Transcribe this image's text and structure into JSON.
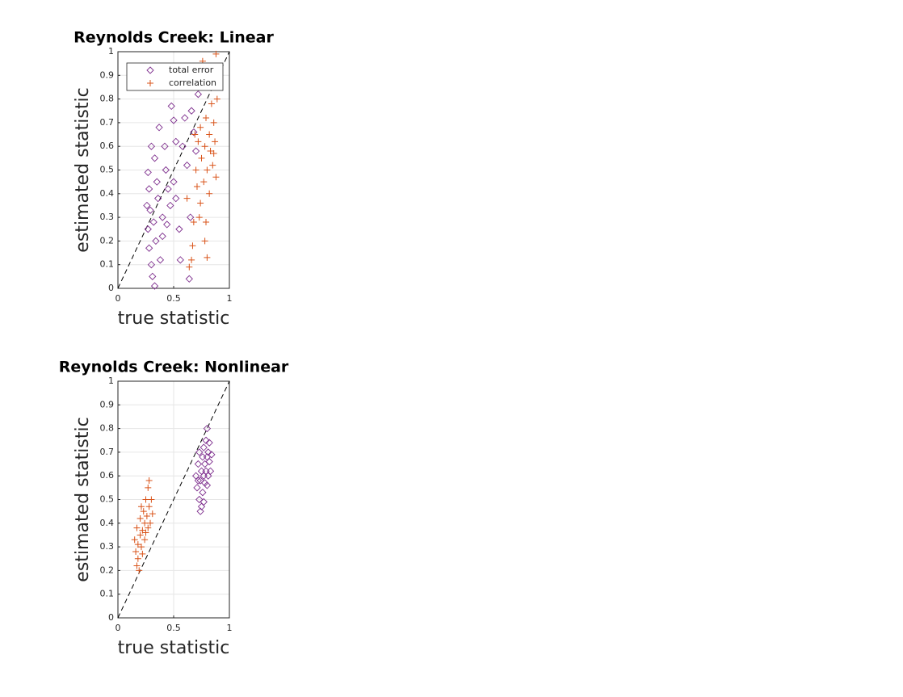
{
  "chart_data": [
    {
      "type": "scatter",
      "title": "Reynolds Creek: Linear",
      "xlabel": "true statistic",
      "ylabel": "estimated statistic",
      "xlim": [
        0,
        1
      ],
      "ylim": [
        0,
        1
      ],
      "xticks": [
        0,
        0.5,
        1
      ],
      "yticks": [
        0,
        0.1,
        0.2,
        0.3,
        0.4,
        0.5,
        0.6,
        0.7,
        0.8,
        0.9,
        1
      ],
      "grid": true,
      "identity_line": true,
      "legend": "northeast",
      "series": [
        {
          "name": "total error",
          "color": "#7e2f8e",
          "marker": "diamond",
          "x": [
            0.27,
            0.28,
            0.29,
            0.27,
            0.28,
            0.3,
            0.31,
            0.33,
            0.3,
            0.33,
            0.35,
            0.36,
            0.32,
            0.34,
            0.38,
            0.4,
            0.42,
            0.43,
            0.45,
            0.47,
            0.48,
            0.5,
            0.52,
            0.5,
            0.52,
            0.55,
            0.56,
            0.58,
            0.6,
            0.62,
            0.64,
            0.65,
            0.66,
            0.68,
            0.7,
            0.72,
            0.44,
            0.37,
            0.26,
            0.4
          ],
          "values": [
            0.49,
            0.42,
            0.33,
            0.25,
            0.17,
            0.1,
            0.05,
            0.01,
            0.6,
            0.55,
            0.45,
            0.38,
            0.28,
            0.2,
            0.12,
            0.3,
            0.6,
            0.5,
            0.42,
            0.35,
            0.77,
            0.71,
            0.62,
            0.45,
            0.38,
            0.25,
            0.12,
            0.6,
            0.72,
            0.52,
            0.04,
            0.3,
            0.75,
            0.66,
            0.58,
            0.82,
            0.27,
            0.68,
            0.35,
            0.22
          ]
        },
        {
          "name": "correlation",
          "color": "#d95319",
          "marker": "plus",
          "x": [
            0.62,
            0.64,
            0.66,
            0.67,
            0.68,
            0.7,
            0.71,
            0.72,
            0.73,
            0.74,
            0.75,
            0.76,
            0.77,
            0.78,
            0.78,
            0.79,
            0.8,
            0.8,
            0.81,
            0.82,
            0.82,
            0.83,
            0.84,
            0.85,
            0.86,
            0.87,
            0.87,
            0.88,
            0.88,
            0.89,
            0.69,
            0.74,
            0.79,
            0.86,
            0.83
          ],
          "values": [
            0.38,
            0.09,
            0.12,
            0.18,
            0.28,
            0.5,
            0.43,
            0.62,
            0.3,
            0.68,
            0.55,
            0.96,
            0.45,
            0.2,
            0.6,
            0.72,
            0.13,
            0.5,
            0.85,
            0.4,
            0.65,
            0.58,
            0.78,
            0.52,
            0.7,
            0.92,
            0.62,
            0.99,
            0.47,
            0.8,
            0.65,
            0.36,
            0.28,
            0.57,
            0.88
          ]
        }
      ]
    },
    {
      "type": "scatter",
      "title": "Reynolds Creek: Nonlinear",
      "xlabel": "true statistic",
      "ylabel": "estimated statistic",
      "xlim": [
        0,
        1
      ],
      "ylim": [
        0,
        1
      ],
      "xticks": [
        0,
        0.5,
        1
      ],
      "yticks": [
        0,
        0.1,
        0.2,
        0.3,
        0.4,
        0.5,
        0.6,
        0.7,
        0.8,
        0.9,
        1
      ],
      "grid": true,
      "identity_line": true,
      "series": [
        {
          "color": "#7e2f8e",
          "marker": "diamond",
          "x": [
            0.7,
            0.71,
            0.72,
            0.73,
            0.73,
            0.74,
            0.75,
            0.75,
            0.76,
            0.76,
            0.77,
            0.77,
            0.78,
            0.78,
            0.79,
            0.79,
            0.8,
            0.8,
            0.81,
            0.81,
            0.82,
            0.82,
            0.83,
            0.84,
            0.74,
            0.77,
            0.72,
            0.8
          ],
          "values": [
            0.6,
            0.55,
            0.65,
            0.5,
            0.7,
            0.58,
            0.47,
            0.62,
            0.68,
            0.53,
            0.72,
            0.6,
            0.65,
            0.57,
            0.75,
            0.62,
            0.68,
            0.8,
            0.6,
            0.7,
            0.66,
            0.74,
            0.62,
            0.69,
            0.45,
            0.49,
            0.58,
            0.56
          ]
        },
        {
          "color": "#d95319",
          "marker": "plus",
          "x": [
            0.15,
            0.16,
            0.17,
            0.18,
            0.18,
            0.19,
            0.2,
            0.2,
            0.21,
            0.22,
            0.22,
            0.23,
            0.24,
            0.24,
            0.25,
            0.25,
            0.26,
            0.27,
            0.27,
            0.28,
            0.28,
            0.29,
            0.3,
            0.31,
            0.17,
            0.21
          ],
          "values": [
            0.33,
            0.28,
            0.38,
            0.25,
            0.31,
            0.2,
            0.35,
            0.42,
            0.3,
            0.37,
            0.27,
            0.45,
            0.33,
            0.4,
            0.5,
            0.36,
            0.43,
            0.55,
            0.38,
            0.47,
            0.58,
            0.4,
            0.5,
            0.44,
            0.22,
            0.47
          ]
        }
      ]
    }
  ]
}
